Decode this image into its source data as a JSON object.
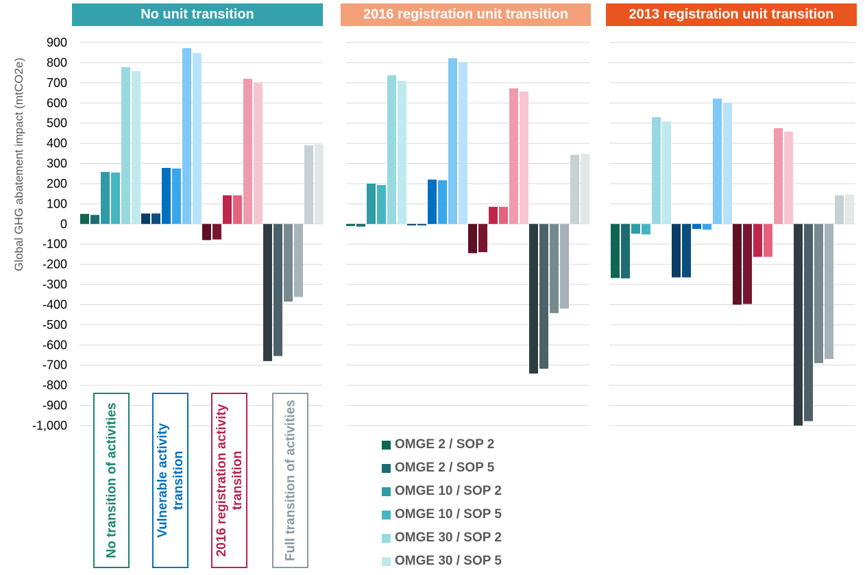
{
  "chart_data": {
    "type": "bar",
    "ylabel": "Global GHG abatement impact (mtCO2e)",
    "ylim": [
      -1000,
      900
    ],
    "yticks": [
      900,
      800,
      700,
      600,
      500,
      400,
      300,
      200,
      100,
      0,
      -100,
      -200,
      -300,
      -400,
      -500,
      -600,
      -700,
      -800,
      -900,
      -1000
    ],
    "ytick_labels": [
      "900",
      "800",
      "700",
      "600",
      "500",
      "400",
      "300",
      "200",
      "100",
      "0",
      "-100",
      "-200",
      "-300",
      "-400",
      "-500",
      "-600",
      "-700",
      "-800",
      "-900",
      "-1,000"
    ],
    "grid": true,
    "legend_position": "bottom-center",
    "groups": [
      "No transition of activities",
      "Vulnerable activity transition",
      "2016 registration activity transition",
      "Full transition of activities"
    ],
    "scenarios": [
      "OMGE 2 / SOP 2",
      "OMGE 2 / SOP 5",
      "OMGE 10 / SOP 2",
      "OMGE 10 / SOP 5",
      "OMGE 30 / SOP 2",
      "OMGE 30 / SOP 5"
    ],
    "group_colors": [
      [
        "#0e6655",
        "#1d6b73",
        "#2e9ba6",
        "#45b6c1",
        "#98d9e0",
        "#c0e9ee"
      ],
      [
        "#0b3c66",
        "#0b4e80",
        "#0070c0",
        "#3aa7ec",
        "#7fc8f8",
        "#b8e2fb"
      ],
      [
        "#5e1024",
        "#7a1530",
        "#c0254b",
        "#e4637f",
        "#f09aae",
        "#f7c5d2"
      ],
      [
        "#2e3d43",
        "#4d6168",
        "#768a90",
        "#a6b3b8",
        "#c7d0d3",
        "#e2e7e8"
      ]
    ],
    "panels": [
      {
        "title": "No unit transition",
        "title_color": "#33a2ad",
        "values": [
          [
            50,
            45,
            258,
            255,
            778,
            758
          ],
          [
            52,
            52,
            278,
            275,
            872,
            848
          ],
          [
            -80,
            -77,
            142,
            142,
            720,
            702
          ],
          [
            -680,
            -655,
            -385,
            -362,
            390,
            395
          ]
        ]
      },
      {
        "title": "2016 registration  unit transition",
        "title_color": "#f4a07a",
        "values": [
          [
            -10,
            -13,
            200,
            193,
            738,
            710
          ],
          [
            -7,
            -7,
            220,
            217,
            822,
            803
          ],
          [
            -145,
            -140,
            85,
            85,
            673,
            657
          ],
          [
            -742,
            -718,
            -442,
            -420,
            343,
            347
          ]
        ]
      },
      {
        "title": "2013 registration  unit transition",
        "title_color": "#e9551e",
        "values": [
          [
            -268,
            -270,
            -48,
            -52,
            530,
            508
          ],
          [
            -265,
            -265,
            -25,
            -28,
            622,
            600
          ],
          [
            -400,
            -397,
            -163,
            -163,
            475,
            458
          ],
          [
            -1000,
            -978,
            -690,
            -670,
            142,
            147
          ]
        ]
      }
    ],
    "legend": [
      {
        "label": "OMGE 2 / SOP 2",
        "color": "#0e6655"
      },
      {
        "label": "OMGE 2 / SOP 5",
        "color": "#1d6b73"
      },
      {
        "label": "OMGE 10 / SOP 2",
        "color": "#2e9ba6"
      },
      {
        "label": "OMGE 10 / SOP 5",
        "color": "#45b6c1"
      },
      {
        "label": "OMGE 30 / SOP 2",
        "color": "#98d9e0"
      },
      {
        "label": "OMGE 30 / SOP 5",
        "color": "#c0e9ee"
      }
    ]
  }
}
